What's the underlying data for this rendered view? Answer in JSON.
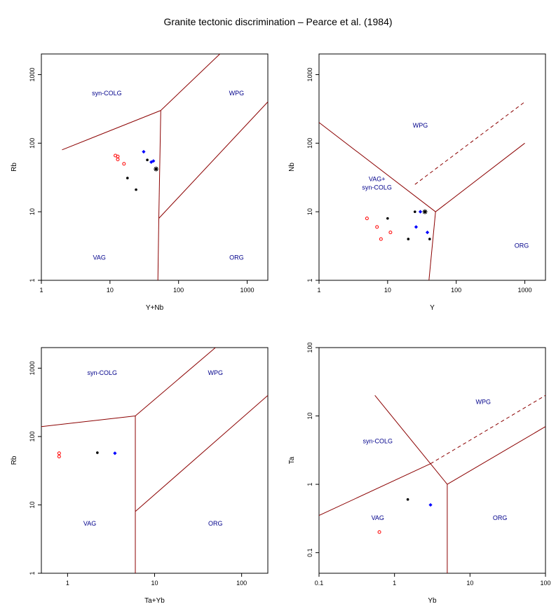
{
  "title": "Granite tectonic discrimination – Pearce et al. (1984)",
  "colors": {
    "boundary": "#8b0000",
    "field_label": "#00008b",
    "axis": "#000000",
    "series_red": "#ff0000",
    "series_black": "#000000",
    "series_blue": "#0000ff"
  },
  "chart_data": [
    {
      "type": "scatter",
      "id": "p1",
      "xlog": true,
      "ylog": true,
      "xlabel": "Y+Nb",
      "ylabel": "Rb",
      "xlim": [
        1,
        2000
      ],
      "ylim": [
        1,
        2000
      ],
      "xticks": [
        {
          "v": 1,
          "label": "1"
        },
        {
          "v": 10,
          "label": "10"
        },
        {
          "v": 100,
          "label": "100"
        },
        {
          "v": 1000,
          "label": "1000"
        }
      ],
      "yticks": [
        {
          "v": 1,
          "label": "1"
        },
        {
          "v": 10,
          "label": "10"
        },
        {
          "v": 100,
          "label": "100"
        },
        {
          "v": 1000,
          "label": "1000"
        }
      ],
      "boundaries": [
        {
          "dashed": false,
          "points": [
            [
              2,
              80
            ],
            [
              55,
              300
            ]
          ]
        },
        {
          "dashed": false,
          "points": [
            [
              55,
              300
            ],
            [
              400,
              2000
            ]
          ]
        },
        {
          "dashed": false,
          "points": [
            [
              55,
              300
            ],
            [
              51.5,
              8
            ]
          ]
        },
        {
          "dashed": false,
          "points": [
            [
              51.5,
              8
            ],
            [
              50,
              1
            ]
          ]
        },
        {
          "dashed": false,
          "points": [
            [
              51.5,
              8
            ],
            [
              2000,
              400
            ]
          ]
        }
      ],
      "field_labels": [
        {
          "text": "syn-COLG",
          "x": 9,
          "y": 500
        },
        {
          "text": "WPG",
          "x": 700,
          "y": 500
        },
        {
          "text": "VAG",
          "x": 7,
          "y": 2
        },
        {
          "text": "ORG",
          "x": 700,
          "y": 2
        }
      ],
      "points": [
        {
          "x": 12,
          "y": 66,
          "color": "red",
          "marker": "circle"
        },
        {
          "x": 13,
          "y": 64,
          "color": "red",
          "marker": "circle"
        },
        {
          "x": 13,
          "y": 58,
          "color": "red",
          "marker": "circle"
        },
        {
          "x": 16,
          "y": 50,
          "color": "red",
          "marker": "circle"
        },
        {
          "x": 18,
          "y": 31,
          "color": "black",
          "marker": "dot"
        },
        {
          "x": 24,
          "y": 21,
          "color": "black",
          "marker": "dot"
        },
        {
          "x": 35,
          "y": 57,
          "color": "black",
          "marker": "dot"
        },
        {
          "x": 47,
          "y": 42,
          "color": "black",
          "marker": "star"
        },
        {
          "x": 31,
          "y": 75,
          "color": "blue",
          "marker": "diamond"
        },
        {
          "x": 40,
          "y": 53,
          "color": "blue",
          "marker": "diamond"
        },
        {
          "x": 43,
          "y": 55,
          "color": "blue",
          "marker": "diamond"
        }
      ]
    },
    {
      "type": "scatter",
      "id": "p2",
      "xlog": true,
      "ylog": true,
      "xlabel": "Y",
      "ylabel": "Nb",
      "xlim": [
        1,
        2000
      ],
      "ylim": [
        1,
        2000
      ],
      "xticks": [
        {
          "v": 1,
          "label": "1"
        },
        {
          "v": 10,
          "label": "10"
        },
        {
          "v": 100,
          "label": "100"
        },
        {
          "v": 1000,
          "label": "1000"
        }
      ],
      "yticks": [
        {
          "v": 1,
          "label": "1"
        },
        {
          "v": 10,
          "label": "10"
        },
        {
          "v": 100,
          "label": "100"
        },
        {
          "v": 1000,
          "label": "1000"
        }
      ],
      "boundaries": [
        {
          "dashed": false,
          "points": [
            [
              1,
              200
            ],
            [
              50,
              10
            ]
          ]
        },
        {
          "dashed": false,
          "points": [
            [
              50,
              10
            ],
            [
              1000,
              100
            ]
          ]
        },
        {
          "dashed": false,
          "points": [
            [
              50,
              10
            ],
            [
              40,
              1
            ]
          ]
        },
        {
          "dashed": true,
          "points": [
            [
              25,
              25
            ],
            [
              1000,
              400
            ]
          ]
        }
      ],
      "field_labels": [
        {
          "text": "WPG",
          "x": 30,
          "y": 170
        },
        {
          "text": "VAG+",
          "x": 7,
          "y": 28
        },
        {
          "text": "syn-COLG",
          "x": 7,
          "y": 21
        },
        {
          "text": "ORG",
          "x": 900,
          "y": 3
        }
      ],
      "points": [
        {
          "x": 5,
          "y": 8,
          "color": "red",
          "marker": "circle"
        },
        {
          "x": 7,
          "y": 6,
          "color": "red",
          "marker": "circle"
        },
        {
          "x": 8,
          "y": 4,
          "color": "red",
          "marker": "circle"
        },
        {
          "x": 11,
          "y": 5,
          "color": "red",
          "marker": "circle"
        },
        {
          "x": 10,
          "y": 8,
          "color": "black",
          "marker": "dot"
        },
        {
          "x": 20,
          "y": 4,
          "color": "black",
          "marker": "dot"
        },
        {
          "x": 25,
          "y": 10,
          "color": "black",
          "marker": "dot"
        },
        {
          "x": 35,
          "y": 10,
          "color": "black",
          "marker": "star"
        },
        {
          "x": 41,
          "y": 4,
          "color": "black",
          "marker": "dot"
        },
        {
          "x": 26,
          "y": 6,
          "color": "blue",
          "marker": "diamond"
        },
        {
          "x": 30,
          "y": 10,
          "color": "blue",
          "marker": "diamond"
        },
        {
          "x": 38,
          "y": 5,
          "color": "blue",
          "marker": "diamond"
        }
      ]
    },
    {
      "type": "scatter",
      "id": "p3",
      "xlog": true,
      "ylog": true,
      "xlabel": "Ta+Yb",
      "ylabel": "Rb",
      "xlim": [
        0.5,
        200
      ],
      "ylim": [
        1,
        2000
      ],
      "xticks": [
        {
          "v": 1,
          "label": "1"
        },
        {
          "v": 10,
          "label": "10"
        },
        {
          "v": 100,
          "label": "100"
        }
      ],
      "yticks": [
        {
          "v": 1,
          "label": "1"
        },
        {
          "v": 10,
          "label": "10"
        },
        {
          "v": 100,
          "label": "100"
        },
        {
          "v": 1000,
          "label": "1000"
        }
      ],
      "boundaries": [
        {
          "dashed": false,
          "points": [
            [
              0.5,
              140
            ],
            [
              6,
              200
            ]
          ]
        },
        {
          "dashed": false,
          "points": [
            [
              6,
              200
            ],
            [
              50,
              2000
            ]
          ]
        },
        {
          "dashed": false,
          "points": [
            [
              6,
              200
            ],
            [
              6,
              8
            ]
          ]
        },
        {
          "dashed": false,
          "points": [
            [
              6,
              8
            ],
            [
              6,
              1
            ]
          ]
        },
        {
          "dashed": false,
          "points": [
            [
              6,
              8
            ],
            [
              200,
              400
            ]
          ]
        }
      ],
      "field_labels": [
        {
          "text": "syn-COLG",
          "x": 2.5,
          "y": 800
        },
        {
          "text": "WPG",
          "x": 50,
          "y": 800
        },
        {
          "text": "VAG",
          "x": 1.8,
          "y": 5
        },
        {
          "text": "ORG",
          "x": 50,
          "y": 5
        }
      ],
      "points": [
        {
          "x": 0.8,
          "y": 57,
          "color": "red",
          "marker": "circle"
        },
        {
          "x": 0.8,
          "y": 51,
          "color": "red",
          "marker": "circle"
        },
        {
          "x": 2.2,
          "y": 58,
          "color": "black",
          "marker": "dot"
        },
        {
          "x": 3.5,
          "y": 57,
          "color": "blue",
          "marker": "diamond"
        }
      ]
    },
    {
      "type": "scatter",
      "id": "p4",
      "xlog": true,
      "ylog": true,
      "xlabel": "Yb",
      "ylabel": "Ta",
      "xlim": [
        0.1,
        100
      ],
      "ylim": [
        0.05,
        100
      ],
      "xticks": [
        {
          "v": 0.1,
          "label": "0.1"
        },
        {
          "v": 1,
          "label": "1"
        },
        {
          "v": 10,
          "label": "10"
        },
        {
          "v": 100,
          "label": "100"
        }
      ],
      "yticks": [
        {
          "v": 0.1,
          "label": "0.1"
        },
        {
          "v": 1,
          "label": "1"
        },
        {
          "v": 10,
          "label": "10"
        },
        {
          "v": 100,
          "label": "100"
        }
      ],
      "boundaries": [
        {
          "dashed": false,
          "points": [
            [
              0.1,
              0.35
            ],
            [
              3,
              2
            ]
          ]
        },
        {
          "dashed": false,
          "points": [
            [
              0.55,
              20
            ],
            [
              3,
              2
            ]
          ]
        },
        {
          "dashed": false,
          "points": [
            [
              3,
              2
            ],
            [
              5,
              1
            ]
          ]
        },
        {
          "dashed": false,
          "points": [
            [
              5,
              1
            ],
            [
              5,
              0.05
            ]
          ]
        },
        {
          "dashed": false,
          "points": [
            [
              5,
              1
            ],
            [
              100,
              7
            ]
          ]
        },
        {
          "dashed": true,
          "points": [
            [
              3,
              2
            ],
            [
              100,
              20
            ]
          ]
        }
      ],
      "field_labels": [
        {
          "text": "WPG",
          "x": 15,
          "y": 15
        },
        {
          "text": "syn-COLG",
          "x": 0.6,
          "y": 4
        },
        {
          "text": "VAG",
          "x": 0.6,
          "y": 0.3
        },
        {
          "text": "ORG",
          "x": 25,
          "y": 0.3
        }
      ],
      "points": [
        {
          "x": 0.63,
          "y": 0.2,
          "color": "red",
          "marker": "circle"
        },
        {
          "x": 1.5,
          "y": 0.6,
          "color": "black",
          "marker": "dot"
        },
        {
          "x": 3,
          "y": 0.5,
          "color": "blue",
          "marker": "diamond"
        }
      ]
    }
  ]
}
